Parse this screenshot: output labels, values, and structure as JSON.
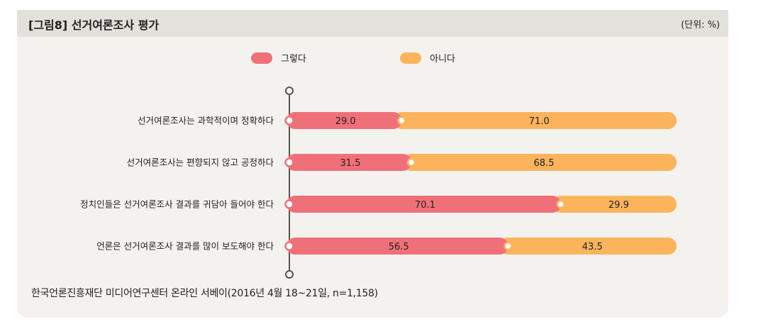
{
  "header": {
    "title": "[그림8]  선거여론조사 평가",
    "unit": "(단위: %)"
  },
  "source": "한국언론진흥재단 미디어연구센터 온라인 서베이(2016년 4월 18~21일, n=1,158)",
  "colors": {
    "yes": "#f0707a",
    "no": "#fbb45c",
    "axis": "#555555"
  },
  "chart_data": {
    "type": "bar",
    "orientation": "horizontal",
    "stacked": true,
    "title": "선거여론조사 평가",
    "unit": "%",
    "categories": [
      "선거여론조사는 과학적이며 정확하다",
      "선거여론조사는 편향되지 않고 공정하다",
      "정치인들은 선거여론조사 결과를 귀담아 들어야 한다",
      "언론은 선거여론조사 결과를 많이 보도해야 한다"
    ],
    "series": [
      {
        "name": "그렇다",
        "values": [
          29.0,
          31.5,
          70.1,
          56.5
        ]
      },
      {
        "name": "아니다",
        "values": [
          71.0,
          68.5,
          29.9,
          43.5
        ]
      }
    ],
    "value_labels": [
      [
        "29.0",
        "31.5",
        "70.1",
        "56.5"
      ],
      [
        "71.0",
        "68.5",
        "29.9",
        "43.5"
      ]
    ],
    "xlim": [
      0,
      100
    ],
    "legend_position": "top"
  }
}
